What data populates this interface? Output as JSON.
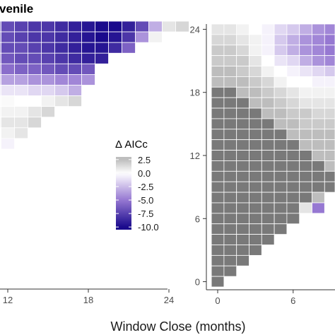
{
  "chart_data": [
    {
      "type": "heatmap",
      "title": "venile",
      "xlabel": "",
      "ylabel": "",
      "x_tick_labels": [
        "12",
        "18",
        "24"
      ],
      "x_ticks": [
        12,
        18,
        24
      ],
      "xlim": [
        8,
        25
      ],
      "ylim": [
        -0.5,
        24.5
      ],
      "grid": false,
      "fill_scale": "delta_aicc",
      "description_of_cells": "Lower-triangular heatmap: cell (window_close, window_open) drawn for window_open >= window_close - offset",
      "cells_note": "values approximate, read from color",
      "rows": [
        {
          "y": 24,
          "x_start": 8,
          "values": [
            -6,
            -6,
            -6.5,
            -7,
            -7,
            -7.5,
            -8,
            -8,
            -8.5,
            -9,
            -9.5,
            -10,
            -10,
            -9,
            -7,
            -3,
            1,
            1.5
          ]
        },
        {
          "y": 23,
          "x_start": 8,
          "values": [
            -6,
            -6,
            -6.5,
            -7,
            -7,
            -7.5,
            -8,
            -8,
            -8.5,
            -9,
            -9.5,
            -10,
            -9.5,
            -8,
            -4,
            0.5
          ]
        },
        {
          "y": 22,
          "x_start": 8,
          "values": [
            -5.5,
            -6,
            -6,
            -6.5,
            -7,
            -7,
            -7.5,
            -8,
            -8.5,
            -9,
            -9.5,
            -9.5,
            -8.5,
            -6
          ]
        },
        {
          "y": 21,
          "x_start": 8,
          "values": [
            -5,
            -5.5,
            -6,
            -6,
            -6.5,
            -7,
            -7,
            -7.5,
            -8,
            -8.5,
            -9,
            -9
          ]
        },
        {
          "y": 20,
          "x_start": 8,
          "values": [
            -4,
            -4.5,
            -5,
            -5,
            -5.5,
            -6,
            -6,
            -6.5,
            -7,
            -7,
            -6.5
          ]
        },
        {
          "y": 19,
          "x_start": 8,
          "values": [
            -2,
            -2.5,
            -3,
            -3,
            -3.5,
            -3.5,
            -4,
            -4,
            -4.5,
            -4.5,
            -4
          ]
        },
        {
          "y": 18,
          "x_start": 8,
          "values": [
            -0.5,
            -0.5,
            -1,
            -1,
            -1,
            -1,
            -1.5,
            -1.5,
            -2,
            -3
          ]
        },
        {
          "y": 17,
          "x_start": 8,
          "values": [
            0.5,
            0.5,
            0.3,
            0.2,
            0.2,
            0,
            0,
            0.5,
            1,
            1.5
          ]
        },
        {
          "y": 16,
          "x_start": 8,
          "values": [
            1,
            1,
            0.8,
            0.5,
            0.5,
            0.5,
            1,
            1.5
          ]
        },
        {
          "y": 15,
          "x_start": 8,
          "values": [
            -1,
            -0.5,
            0,
            0.5,
            1,
            1,
            1.5
          ]
        },
        {
          "y": 14,
          "x_start": 8,
          "values": [
            -2,
            -1,
            -0.5,
            0,
            0.5,
            1
          ]
        },
        {
          "y": 13,
          "x_start": 8,
          "values": [
            -3,
            -2,
            -1,
            0,
            -0.5
          ]
        },
        {
          "y": 12,
          "x_start": 8,
          "values": [
            -2.5,
            -1.5,
            -5
          ]
        },
        {
          "y": 11,
          "x_start": 8,
          "values": [
            -2,
            -1
          ]
        },
        {
          "y": 10,
          "x_start": 8,
          "values": [
            -1
          ]
        }
      ]
    },
    {
      "type": "heatmap",
      "title": "",
      "xlabel": "",
      "ylabel": "",
      "x_tick_labels": [
        "0",
        "6"
      ],
      "x_ticks": [
        0,
        6
      ],
      "y_tick_labels": [
        "0",
        "6",
        "12",
        "18",
        "24"
      ],
      "y_ticks": [
        0,
        6,
        12,
        18,
        24
      ],
      "xlim": [
        -0.5,
        9
      ],
      "ylim": [
        -0.5,
        24.5
      ],
      "grid": false,
      "fill_scale": "delta_aicc",
      "cells_note": "values approximate, read from color; cell drawn where row y >= column x",
      "rows": [
        {
          "y": 24,
          "values": [
            1,
            1,
            0.5,
            0,
            -0.5,
            -1.5,
            -2,
            -3,
            -4,
            -4.5
          ]
        },
        {
          "y": 23,
          "values": [
            1.5,
            1.5,
            1,
            0.5,
            -0.5,
            -2,
            -3,
            -4,
            -4.5,
            -5
          ]
        },
        {
          "y": 22,
          "values": [
            2,
            2,
            1.5,
            0.5,
            -0.5,
            -2,
            -3,
            -4,
            -4.5,
            -5
          ]
        },
        {
          "y": 21,
          "values": [
            2,
            2,
            2,
            1,
            0,
            -1,
            -1.5,
            -3,
            -4,
            -4.5
          ]
        },
        {
          "y": 20,
          "values": [
            2.5,
            2.5,
            2,
            1.5,
            0.5,
            0,
            -0.5,
            -1,
            -1.5,
            -2
          ]
        },
        {
          "y": 19,
          "values": [
            2.5,
            2.5,
            2.5,
            2,
            1.5,
            0.5,
            0,
            0,
            -0.5,
            -0.5
          ]
        },
        {
          "y": 18,
          "values": [
            3,
            3,
            2.5,
            2.5,
            2,
            1.5,
            1,
            0.5,
            0.5,
            0.5
          ]
        },
        {
          "y": 17,
          "values": [
            3,
            3,
            3,
            2.5,
            2.5,
            2,
            1.5,
            1,
            1,
            1
          ]
        },
        {
          "y": 16,
          "values": [
            3,
            3,
            3,
            3,
            2.5,
            2.5,
            2,
            2,
            1.5,
            1.5
          ]
        },
        {
          "y": 15,
          "values": [
            3,
            3,
            3,
            3,
            3,
            2.5,
            2.5,
            2,
            2,
            2
          ]
        },
        {
          "y": 14,
          "values": [
            3,
            3,
            3,
            3,
            3,
            3,
            2.5,
            2.5,
            2.5,
            2.5
          ]
        },
        {
          "y": 13,
          "values": [
            3,
            3,
            3,
            3,
            3,
            3,
            3,
            2.5,
            2.5,
            2.5
          ]
        },
        {
          "y": 12,
          "values": [
            3,
            3,
            3,
            3,
            3,
            3,
            3,
            3,
            2.5,
            2.5
          ]
        },
        {
          "y": 11,
          "values": [
            3,
            3,
            3,
            3,
            3,
            3,
            3,
            3,
            3,
            2.5
          ]
        },
        {
          "y": 10,
          "values": [
            3,
            3,
            3,
            3,
            3,
            3,
            3,
            3,
            3,
            3
          ]
        },
        {
          "y": 9,
          "values": [
            3,
            3,
            3,
            3,
            3,
            3,
            3,
            3,
            3,
            3
          ]
        },
        {
          "y": 8,
          "values": [
            3,
            3,
            3,
            3,
            3,
            3,
            3,
            3,
            2.5
          ]
        },
        {
          "y": 7,
          "values": [
            3,
            3,
            3,
            3,
            3,
            3,
            3,
            1,
            -5
          ]
        },
        {
          "y": 6,
          "values": [
            3,
            3,
            3,
            3,
            3,
            3,
            3
          ]
        },
        {
          "y": 5,
          "values": [
            3,
            3,
            3,
            3,
            3,
            3
          ]
        },
        {
          "y": 4,
          "values": [
            3,
            3,
            3,
            3,
            3
          ]
        },
        {
          "y": 3,
          "values": [
            3,
            3,
            3,
            3
          ]
        },
        {
          "y": 2,
          "values": [
            3,
            3,
            3
          ]
        },
        {
          "y": 1,
          "values": [
            3,
            3
          ]
        },
        {
          "y": 0,
          "values": [
            3
          ]
        }
      ]
    }
  ],
  "legend": {
    "title": "Δ AICc",
    "ticks": [
      "2.5",
      "0.0",
      "-2.5",
      "-5.0",
      "-7.5",
      "-10.0"
    ],
    "tick_values": [
      2.5,
      0,
      -2.5,
      -5,
      -7.5,
      -10
    ],
    "range": [
      -10.5,
      3
    ],
    "colors": {
      "low": "#1a0a8c",
      "mid": "#ffffff",
      "high": "#bdbdbd"
    },
    "placement": "center"
  },
  "shared_xlabel": "Window Close (months)",
  "colors": {
    "panel_bg": "#ffffff",
    "axis": "#333333",
    "grey_high": "#6b6b6b",
    "grid_line": "#ffffff"
  }
}
